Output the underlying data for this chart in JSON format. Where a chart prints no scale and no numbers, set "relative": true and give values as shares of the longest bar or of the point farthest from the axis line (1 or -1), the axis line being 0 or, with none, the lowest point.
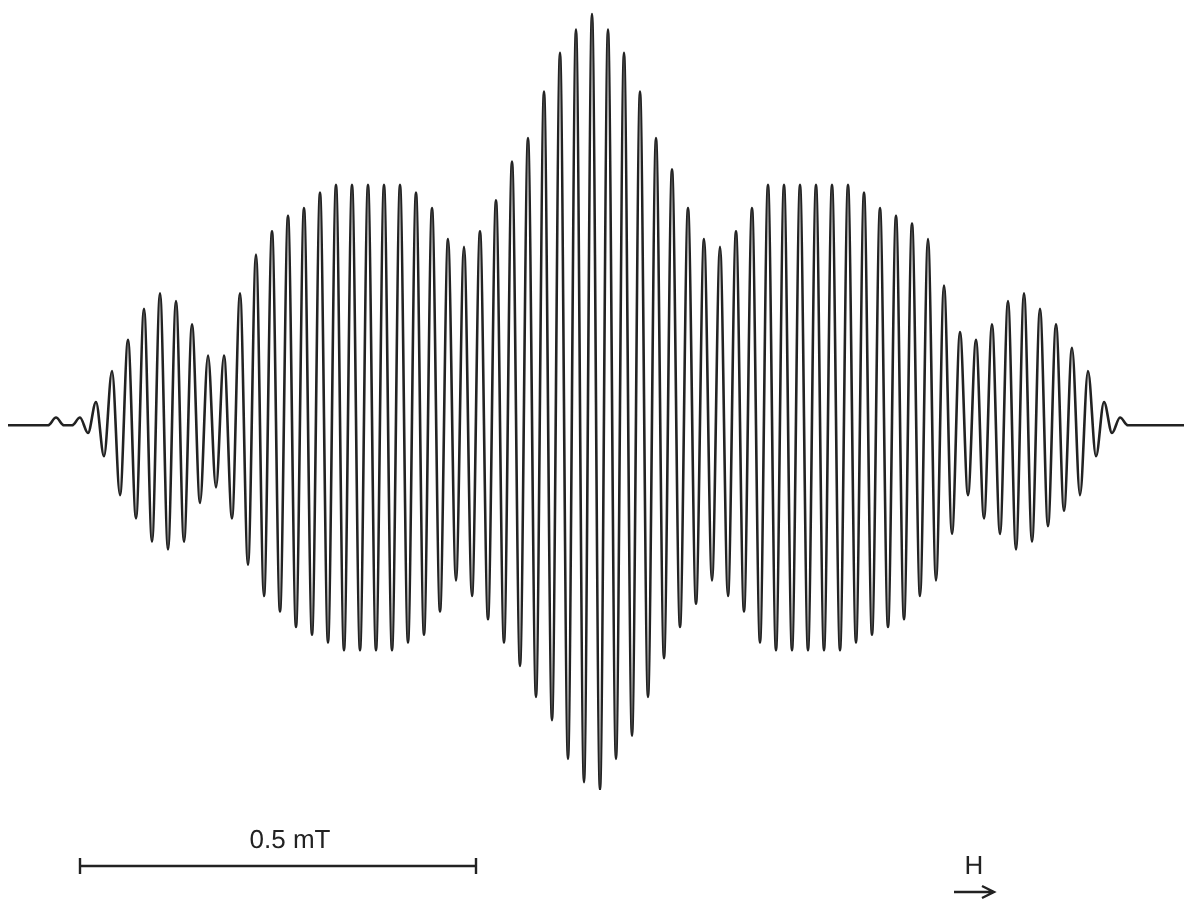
{
  "chart_data": {
    "type": "line",
    "relative": true,
    "color": "#222222",
    "categories": [
      null,
      null,
      null,
      null,
      null,
      null,
      null,
      null,
      null,
      null,
      null,
      null,
      null,
      null,
      null,
      null,
      null,
      null,
      null,
      null,
      null,
      null,
      null,
      null,
      null,
      null,
      null,
      null,
      null,
      null,
      null,
      null,
      null,
      null,
      null,
      null,
      null,
      null,
      null,
      null,
      null,
      null,
      null,
      null,
      null,
      null,
      null,
      null,
      null,
      null,
      null,
      null,
      null,
      null,
      null,
      null,
      null,
      null,
      null,
      null,
      null,
      null,
      null,
      null,
      null,
      null,
      null,
      null,
      null,
      null,
      null,
      null,
      null,
      null,
      null,
      null,
      null,
      null,
      null,
      null,
      null,
      null,
      null,
      null,
      null,
      null,
      null,
      null,
      null,
      null,
      null,
      null,
      null,
      null,
      null,
      null,
      null,
      null,
      null,
      null,
      null,
      null,
      null,
      null,
      null,
      null,
      null,
      null,
      null,
      null,
      null,
      null,
      null,
      null,
      null,
      null,
      null,
      null,
      null,
      null,
      null,
      null,
      null,
      null,
      null,
      null,
      null,
      null,
      null,
      null,
      null,
      null,
      null,
      null,
      null,
      null,
      null,
      null,
      null,
      null,
      null,
      null,
      null,
      null,
      null,
      null,
      null,
      null
    ],
    "values": [
      0.47,
      0.47,
      0.47,
      0.47,
      0.47,
      0.47,
      0.48,
      0.47,
      0.47,
      0.48,
      0.46,
      0.5,
      0.43,
      0.54,
      0.38,
      0.58,
      0.35,
      0.62,
      0.32,
      0.64,
      0.31,
      0.63,
      0.32,
      0.6,
      0.37,
      0.56,
      0.39,
      0.56,
      0.35,
      0.64,
      0.29,
      0.69,
      0.25,
      0.72,
      0.23,
      0.74,
      0.21,
      0.75,
      0.2,
      0.77,
      0.19,
      0.78,
      0.18,
      0.78,
      0.18,
      0.78,
      0.18,
      0.78,
      0.18,
      0.78,
      0.19,
      0.77,
      0.2,
      0.75,
      0.23,
      0.71,
      0.27,
      0.7,
      0.25,
      0.72,
      0.22,
      0.76,
      0.19,
      0.81,
      0.16,
      0.84,
      0.12,
      0.9,
      0.09,
      0.95,
      0.04,
      0.98,
      0.01,
      1.0,
      0.0,
      0.98,
      0.04,
      0.95,
      0.07,
      0.9,
      0.12,
      0.84,
      0.17,
      0.8,
      0.21,
      0.75,
      0.24,
      0.71,
      0.27,
      0.7,
      0.25,
      0.72,
      0.23,
      0.75,
      0.19,
      0.78,
      0.18,
      0.78,
      0.18,
      0.78,
      0.18,
      0.78,
      0.18,
      0.78,
      0.18,
      0.78,
      0.19,
      0.77,
      0.2,
      0.75,
      0.21,
      0.74,
      0.22,
      0.73,
      0.25,
      0.71,
      0.27,
      0.65,
      0.33,
      0.59,
      0.38,
      0.58,
      0.35,
      0.6,
      0.33,
      0.63,
      0.31,
      0.64,
      0.32,
      0.62,
      0.34,
      0.6,
      0.36,
      0.57,
      0.38,
      0.54,
      0.43,
      0.5,
      0.46,
      0.48,
      0.47,
      0.47,
      0.47,
      0.47,
      0.47,
      0.47,
      0.47,
      0.47
    ],
    "annotations": [
      "0.5 mT",
      "H"
    ]
  }
}
